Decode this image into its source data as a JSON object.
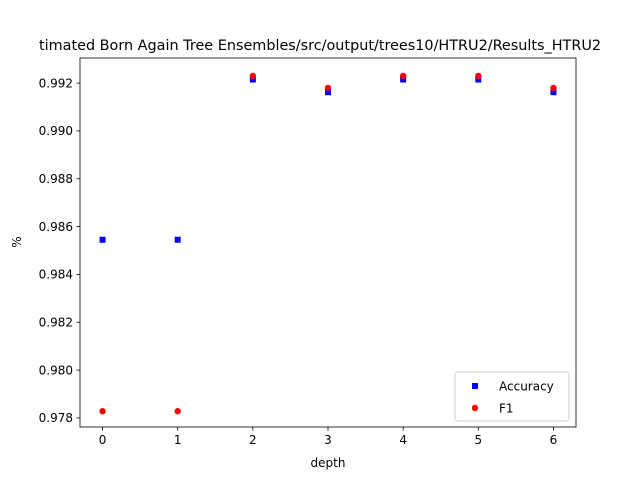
{
  "chart_data": {
    "type": "scatter",
    "title": "timated Born Again Tree Ensembles/src/output/trees10/HTRU2/Results_HTRU2",
    "xlabel": "depth",
    "ylabel": "%",
    "xlim": [
      -0.3,
      6.3
    ],
    "ylim": [
      0.97762,
      0.99305
    ],
    "xticks": [
      0,
      1,
      2,
      3,
      4,
      5,
      6
    ],
    "xtick_labels": [
      "0",
      "1",
      "2",
      "3",
      "4",
      "5",
      "6"
    ],
    "yticks": [
      0.978,
      0.98,
      0.982,
      0.984,
      0.986,
      0.988,
      0.99,
      0.992
    ],
    "ytick_labels": [
      "0.978",
      "0.980",
      "0.982",
      "0.984",
      "0.986",
      "0.988",
      "0.990",
      "0.992"
    ],
    "grid": false,
    "legend_position": "lower-right",
    "series": [
      {
        "name": "Accuracy",
        "marker": "square",
        "color": "#0000ff",
        "x": [
          0,
          1,
          2,
          3,
          4,
          5,
          6
        ],
        "y": [
          0.98545,
          0.98545,
          0.99215,
          0.99162,
          0.99215,
          0.99215,
          0.99162
        ]
      },
      {
        "name": "F1",
        "marker": "circle",
        "color": "#ff0000",
        "x": [
          0,
          1,
          2,
          3,
          4,
          5,
          6
        ],
        "y": [
          0.97828,
          0.97828,
          0.9923,
          0.9918,
          0.9923,
          0.9923,
          0.9918
        ]
      }
    ]
  }
}
